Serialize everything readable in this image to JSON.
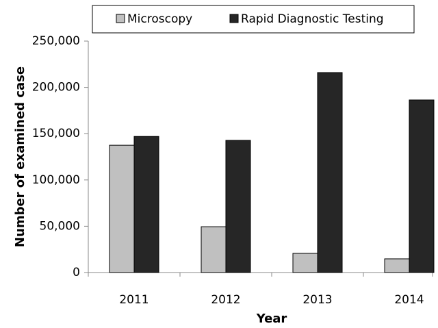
{
  "chart_data": {
    "type": "bar",
    "x_label": "Year",
    "y_label": "Number of examined case",
    "categories": [
      "2011",
      "2012",
      "2013",
      "2014"
    ],
    "series": [
      {
        "name": "Microscopy",
        "color": "#c0c0c0",
        "values": [
          137500,
          49500,
          20700,
          14800
        ]
      },
      {
        "name": "Rapid Diagnostic Testing",
        "color": "#262626",
        "values": [
          147000,
          142800,
          216000,
          186400
        ]
      }
    ],
    "ylim": [
      0,
      250000
    ],
    "yticks": [
      0,
      {
        "value": 50000,
        "label": "50,000"
      },
      {
        "value": 100000,
        "label": "100,000"
      },
      {
        "value": 150000,
        "label": "150,000"
      },
      {
        "value": 200000,
        "label": "200,000"
      },
      {
        "value": 250000,
        "label": "250,000"
      }
    ]
  }
}
